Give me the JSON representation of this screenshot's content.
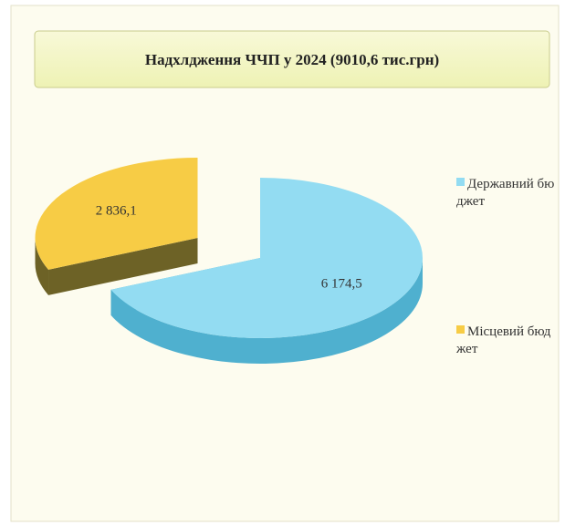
{
  "chart_data": {
    "type": "pie3d",
    "title": "Надхлдження ЧЧП у 2024 (9010,6 тис.грн)",
    "categories": [
      "Державний бюджет",
      "Місцевий бюджет"
    ],
    "values": [
      6174.5,
      2836.1
    ],
    "value_labels": [
      "6 174,5",
      "2 836,1"
    ],
    "colors": [
      "#93dcf2",
      "#f7cc45"
    ],
    "side_colors": [
      "#4fb0cf",
      "#6d6226"
    ],
    "exploded": [
      false,
      true
    ],
    "legend": "right"
  }
}
